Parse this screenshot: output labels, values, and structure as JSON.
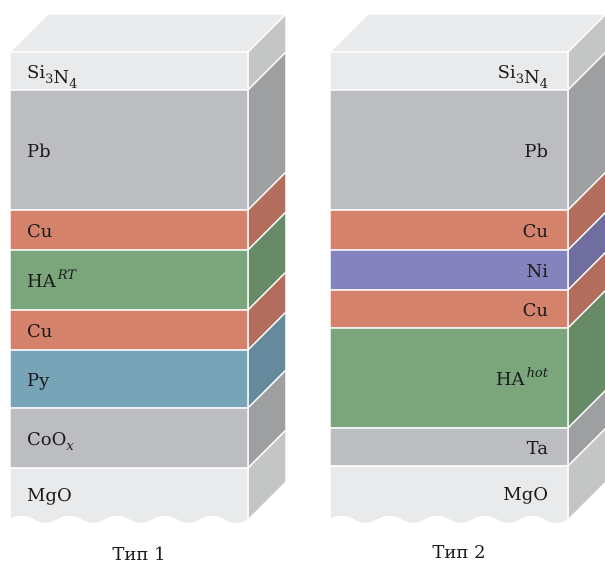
{
  "colors": {
    "top_face": "#e9eaeb",
    "edge": "#ffffff",
    "side_shade": 0.84
  },
  "stacks": [
    {
      "title": "Тип 1",
      "label_align": "left",
      "layers": [
        {
          "id": "si3n4",
          "label": "Si3N4",
          "color": "#e9eaeb"
        },
        {
          "id": "pb",
          "label": "Pb",
          "color": "#bcbdc0"
        },
        {
          "id": "cu-a",
          "label": "Cu",
          "color": "#d5826d"
        },
        {
          "id": "ha-rt",
          "label": "HA",
          "sup": "RT",
          "color": "#7ba57a"
        },
        {
          "id": "cu-b",
          "label": "Cu",
          "color": "#d5826d"
        },
        {
          "id": "py",
          "label": "Py",
          "color": "#78a4b8"
        },
        {
          "id": "coox",
          "label": "CoO",
          "sub": "x",
          "color": "#bcbdc0"
        },
        {
          "id": "mgo",
          "label": "MgO",
          "color": "#e9eaeb"
        }
      ]
    },
    {
      "title": "Тип 2",
      "label_align": "right",
      "layers": [
        {
          "id": "si3n4",
          "label": "Si3N4",
          "color": "#e9eaeb"
        },
        {
          "id": "pb",
          "label": "Pb",
          "color": "#bcbdc0"
        },
        {
          "id": "cu-a",
          "label": "Cu",
          "color": "#d5826d"
        },
        {
          "id": "ni",
          "label": "Ni",
          "color": "#8583bd"
        },
        {
          "id": "cu-b",
          "label": "Cu",
          "color": "#d5826d"
        },
        {
          "id": "ha-hot",
          "label": "HA",
          "sup": "hot",
          "color": "#7ba57a"
        },
        {
          "id": "ta",
          "label": "Ta",
          "color": "#bcbdc0"
        },
        {
          "id": "mgo",
          "label": "MgO",
          "color": "#e9eaeb"
        }
      ]
    }
  ]
}
